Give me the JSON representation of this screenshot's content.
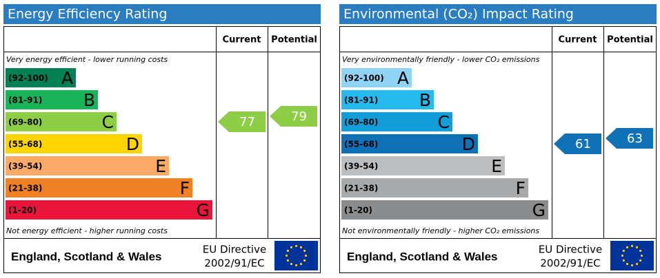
{
  "panels": [
    {
      "title": "Energy Efficiency Rating",
      "columns": [
        "Current",
        "Potential"
      ],
      "top_note": "Very energy efficient - lower running costs",
      "bottom_note": "Not energy efficient - higher running costs",
      "bands": [
        {
          "range": "(92-100)",
          "letter": "A",
          "color": "#008054"
        },
        {
          "range": "(81-91)",
          "letter": "B",
          "color": "#19b459"
        },
        {
          "range": "(69-80)",
          "letter": "C",
          "color": "#8dce46"
        },
        {
          "range": "(55-68)",
          "letter": "D",
          "color": "#ffd500"
        },
        {
          "range": "(39-54)",
          "letter": "E",
          "color": "#fcaa65"
        },
        {
          "range": "(21-38)",
          "letter": "F",
          "color": "#ef8023"
        },
        {
          "range": "(1-20)",
          "letter": "G",
          "color": "#e9153b"
        }
      ],
      "current": 77,
      "potential": 79,
      "footer": {
        "region": "England, Scotland & Wales",
        "directive": "EU Directive",
        "code": "2002/91/EC"
      }
    },
    {
      "title": "Environmental (CO₂) Impact Rating",
      "columns": [
        "Current",
        "Potential"
      ],
      "top_note": "Very environmentally friendly - lower CO₂ emissions",
      "bottom_note": "Not environmentally friendly - higher CO₂ emissions",
      "bands": [
        {
          "range": "(92-100)",
          "letter": "A",
          "color": "#8fd3f5"
        },
        {
          "range": "(81-91)",
          "letter": "B",
          "color": "#25b9ec"
        },
        {
          "range": "(69-80)",
          "letter": "C",
          "color": "#109ed9"
        },
        {
          "range": "(55-68)",
          "letter": "D",
          "color": "#0f72b7"
        },
        {
          "range": "(39-54)",
          "letter": "E",
          "color": "#bbbdbf"
        },
        {
          "range": "(21-38)",
          "letter": "F",
          "color": "#a7a9ab"
        },
        {
          "range": "(1-20)",
          "letter": "G",
          "color": "#8b8c8e"
        }
      ],
      "current": 61,
      "potential": 63,
      "footer": {
        "region": "England, Scotland & Wales",
        "directive": "EU Directive",
        "code": "2002/91/EC"
      }
    }
  ]
}
